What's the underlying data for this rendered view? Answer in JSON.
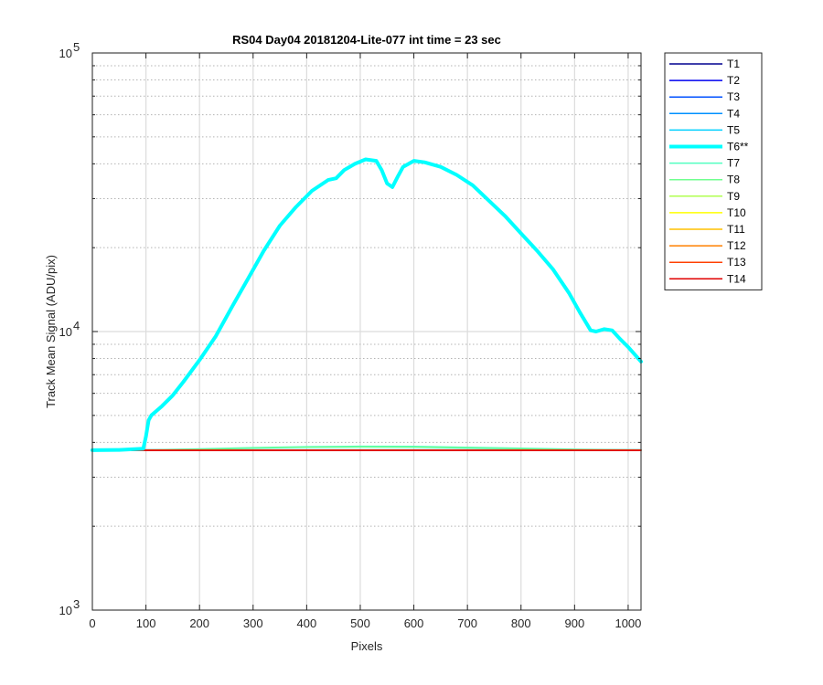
{
  "chart_data": {
    "type": "line",
    "title": "RS04 Day04 20181204-Lite-077 int time = 23 sec",
    "xlabel": "Pixels",
    "ylabel": "Track Mean Signal (ADU/pix)",
    "xlim": [
      0,
      1024
    ],
    "ylim": [
      1000,
      100000
    ],
    "yscale": "log",
    "xticks": [
      0,
      100,
      200,
      300,
      400,
      500,
      600,
      700,
      800,
      900,
      1000
    ],
    "yticks": [
      {
        "value": 1000,
        "mantissa": "10",
        "exponent": "3"
      },
      {
        "value": 10000,
        "mantissa": "10",
        "exponent": "4"
      },
      {
        "value": 100000,
        "mantissa": "10",
        "exponent": "5"
      }
    ],
    "grid": true,
    "legend_position": "outside-right",
    "series": [
      {
        "name": "T1",
        "color": "#00008f",
        "width": 1.5,
        "x": [
          0,
          1024
        ],
        "y": [
          3750,
          3750
        ]
      },
      {
        "name": "T2",
        "color": "#0000ef",
        "width": 1.5,
        "x": [
          0,
          1024
        ],
        "y": [
          3750,
          3750
        ]
      },
      {
        "name": "T3",
        "color": "#0050ff",
        "width": 1.5,
        "x": [
          0,
          1024
        ],
        "y": [
          3750,
          3750
        ]
      },
      {
        "name": "T4",
        "color": "#0090ff",
        "width": 1.5,
        "x": [
          0,
          1024
        ],
        "y": [
          3760,
          3760
        ]
      },
      {
        "name": "T5",
        "color": "#00d0ff",
        "width": 1.5,
        "x": [
          0,
          1024
        ],
        "y": [
          3760,
          3760
        ]
      },
      {
        "name": "T6**",
        "color": "#00ffff",
        "width": 4,
        "x": [
          0,
          50,
          95,
          100,
          105,
          110,
          130,
          150,
          170,
          200,
          230,
          260,
          290,
          320,
          350,
          380,
          410,
          440,
          455,
          470,
          490,
          510,
          530,
          540,
          550,
          560,
          570,
          580,
          600,
          620,
          650,
          680,
          710,
          740,
          770,
          800,
          830,
          860,
          890,
          910,
          930,
          940,
          955,
          970,
          985,
          1000,
          1024
        ],
        "y": [
          3750,
          3760,
          3800,
          4200,
          4800,
          5000,
          5400,
          5900,
          6600,
          7900,
          9600,
          12200,
          15400,
          19500,
          24000,
          28000,
          32000,
          35000,
          35500,
          38000,
          40000,
          41500,
          41000,
          38000,
          34000,
          33000,
          36000,
          39000,
          41000,
          40500,
          39000,
          36500,
          33500,
          29500,
          26000,
          22500,
          19500,
          16700,
          13700,
          11700,
          10100,
          10000,
          10200,
          10100,
          9400,
          8800,
          7800
        ]
      },
      {
        "name": "T7",
        "color": "#50ffc0",
        "width": 1.5,
        "x": [
          0,
          100,
          200,
          300,
          400,
          500,
          600,
          700,
          800,
          900,
          1024
        ],
        "y": [
          3740,
          3760,
          3790,
          3830,
          3860,
          3875,
          3870,
          3840,
          3810,
          3780,
          3760
        ]
      },
      {
        "name": "T8",
        "color": "#70ff8f",
        "width": 1.5,
        "x": [
          0,
          100,
          200,
          300,
          400,
          500,
          600,
          700,
          800,
          900,
          1024
        ],
        "y": [
          3740,
          3755,
          3780,
          3815,
          3840,
          3850,
          3845,
          3820,
          3795,
          3770,
          3755
        ]
      },
      {
        "name": "T9",
        "color": "#b0ff50",
        "width": 1.5,
        "x": [
          0,
          1024
        ],
        "y": [
          3750,
          3750
        ]
      },
      {
        "name": "T10",
        "color": "#ffff00",
        "width": 1.5,
        "x": [
          0,
          1024
        ],
        "y": [
          3750,
          3750
        ]
      },
      {
        "name": "T11",
        "color": "#ffc000",
        "width": 1.5,
        "x": [
          0,
          1024
        ],
        "y": [
          3750,
          3750
        ]
      },
      {
        "name": "T12",
        "color": "#ff8000",
        "width": 1.5,
        "x": [
          0,
          1024
        ],
        "y": [
          3750,
          3750
        ]
      },
      {
        "name": "T13",
        "color": "#ff4000",
        "width": 1.5,
        "x": [
          0,
          1024
        ],
        "y": [
          3750,
          3750
        ]
      },
      {
        "name": "T14",
        "color": "#e00000",
        "width": 1.5,
        "x": [
          0,
          1024
        ],
        "y": [
          3745,
          3745
        ]
      }
    ]
  }
}
